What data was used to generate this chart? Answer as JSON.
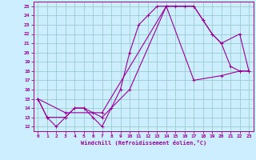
{
  "xlabel": "Windchill (Refroidissement éolien,°C)",
  "bg_color": "#cceeff",
  "line_color": "#990099",
  "grid_color": "#99cccc",
  "xlim": [
    -0.5,
    23.5
  ],
  "ylim": [
    11.5,
    25.5
  ],
  "xticks": [
    0,
    1,
    2,
    3,
    4,
    5,
    6,
    7,
    8,
    9,
    10,
    11,
    12,
    13,
    14,
    15,
    16,
    17,
    18,
    19,
    20,
    21,
    22,
    23
  ],
  "yticks": [
    12,
    13,
    14,
    15,
    16,
    17,
    18,
    19,
    20,
    21,
    22,
    23,
    24,
    25
  ],
  "line1_x": [
    0,
    1,
    2,
    3,
    4,
    5,
    6,
    7,
    8,
    9,
    10,
    11,
    12,
    13,
    14,
    15,
    16,
    17,
    18,
    19,
    20,
    21,
    22,
    23
  ],
  "line1_y": [
    15,
    13,
    12,
    13,
    14,
    14,
    13,
    12,
    14,
    16,
    20,
    23,
    24,
    25,
    25,
    25,
    25,
    25,
    23.5,
    22,
    21,
    18.5,
    18,
    18
  ],
  "line2_x": [
    0,
    1,
    3,
    4,
    5,
    6,
    7,
    10,
    14,
    17,
    18,
    19,
    20,
    22,
    23
  ],
  "line2_y": [
    15,
    13,
    13,
    14,
    14,
    13.5,
    13,
    16,
    25,
    25,
    23.5,
    22,
    21,
    22,
    18
  ],
  "line3_x": [
    0,
    3,
    7,
    14,
    17,
    20,
    22,
    23
  ],
  "line3_y": [
    15,
    13.5,
    13.5,
    25,
    17,
    17.5,
    18,
    18
  ]
}
